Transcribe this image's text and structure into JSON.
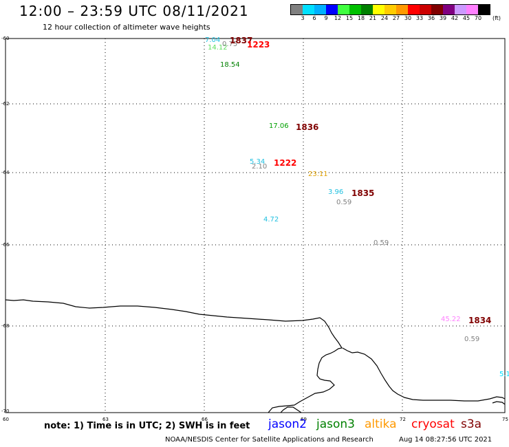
{
  "header": {
    "title": "12:00 – 23:59 UTC 08/11/2021",
    "subtitle": "12 hour collection of altimeter wave heights"
  },
  "color_scale": {
    "colors": [
      "#808080",
      "#00e0ff",
      "#00b0ff",
      "#0000ff",
      "#40ff40",
      "#00c000",
      "#008000",
      "#ffff00",
      "#ffcc00",
      "#ff9900",
      "#ff0000",
      "#cc0000",
      "#800000",
      "#800080",
      "#cc99ff",
      "#ff80ff",
      "#000000"
    ],
    "labels": [
      "3",
      "6",
      "9",
      "12",
      "15",
      "18",
      "21",
      "24",
      "27",
      "30",
      "33",
      "36",
      "39",
      "42",
      "45",
      "70"
    ],
    "unit": "(ft)"
  },
  "axes": {
    "lat_labels": [
      "-60",
      "-62",
      "-64",
      "-66",
      "-68",
      "-70"
    ],
    "lon_labels": [
      "60",
      "63",
      "66",
      "69",
      "72",
      "75"
    ]
  },
  "observations": [
    {
      "text": "7.04",
      "color": "#20c0e0",
      "time": false
    },
    {
      "text": "14.12",
      "color": "#60e060",
      "time": false
    },
    {
      "text": "0.75",
      "color": "#808080",
      "time": false
    },
    {
      "text": "1837",
      "color": "#800000",
      "time": true
    },
    {
      "text": "1223",
      "color": "#ff0000",
      "time": true
    },
    {
      "text": "18.54",
      "color": "#008000",
      "time": false
    },
    {
      "text": "17.06",
      "color": "#00a000",
      "time": false
    },
    {
      "text": "1836",
      "color": "#800000",
      "time": true
    },
    {
      "text": "5.34",
      "color": "#20c0e0",
      "time": false
    },
    {
      "text": "2.10",
      "color": "#808080",
      "time": false
    },
    {
      "text": "1222",
      "color": "#ff0000",
      "time": true
    },
    {
      "text": "23.11",
      "color": "#e0a000",
      "time": false
    },
    {
      "text": "3.96",
      "color": "#20c0e0",
      "time": false
    },
    {
      "text": "1835",
      "color": "#800000",
      "time": true
    },
    {
      "text": "0.59",
      "color": "#808080",
      "time": false
    },
    {
      "text": "4.72",
      "color": "#20c0e0",
      "time": false
    },
    {
      "text": "0.59",
      "color": "#808080",
      "time": false
    },
    {
      "text": "45.22",
      "color": "#ff80ff",
      "time": false
    },
    {
      "text": "1834",
      "color": "#800000",
      "time": true
    },
    {
      "text": "0.59",
      "color": "#808080",
      "time": false
    },
    {
      "text": "5.1",
      "color": "#00e0ff",
      "time": false
    }
  ],
  "footer": {
    "note": "note: 1) Time is in UTC; 2) SWH is in feet",
    "legend": [
      {
        "name": "jason2",
        "color": "#0000ff"
      },
      {
        "name": "jason3",
        "color": "#008000"
      },
      {
        "name": "altika",
        "color": "#ff9900"
      },
      {
        "name": "cryosat",
        "color": "#ff0000"
      },
      {
        "name": "s3a",
        "color": "#800000"
      }
    ],
    "credit": "NOAA/NESDIS Center for Satellite Applications and Research",
    "timestamp": "Aug 14 08:27:56 UTC 2021"
  }
}
